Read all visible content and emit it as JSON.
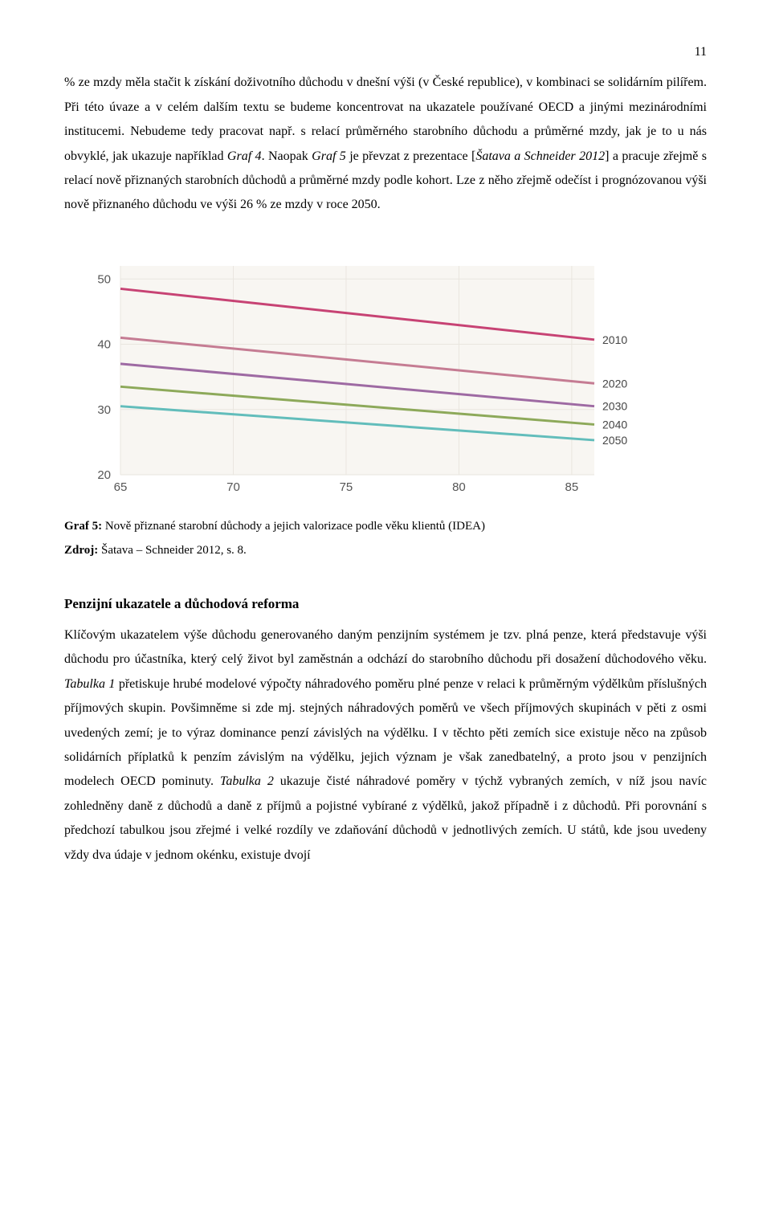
{
  "page_number": "11",
  "paragraph1": {
    "t1": "% ze mzdy měla stačit k získání doživotního důchodu v dnešní výši (v České republice), v kombinaci se solidárním pilířem. Při této úvaze a v celém dalším textu se budeme koncentrovat na ukazatele používané OECD a jinými mezinárodními institucemi. Nebudeme tedy pracovat např. s relací průměrného starobního důchodu a průměrné mzdy, jak je to u nás obvyklé, jak ukazuje například ",
    "i1": "Graf 4",
    "t2": ". Naopak ",
    "i2": "Graf 5",
    "t3": " je převzat z prezentace [",
    "i3": "Šatava a Schneider 2012",
    "t4": "] a pracuje zřejmě s relací nově přiznaných starobních důchodů a průměrné mzdy podle kohort. Lze z něho zřejmě odečíst i prognózovanou výši nově přiznaného důchodu ve výši 26 % ze mzdy v roce 2050."
  },
  "chart": {
    "type": "line",
    "x_ticks": [
      65,
      70,
      75,
      80,
      85
    ],
    "y_ticks": [
      20,
      30,
      40,
      50
    ],
    "xlim": [
      65,
      86
    ],
    "ylim": [
      20,
      52
    ],
    "plot_background": "#f8f6f2",
    "grid_color": "#e9e6df",
    "axis_text_color": "#555555",
    "label_text_color": "#444444",
    "line_width": 3,
    "axis_fontsize": 15,
    "label_fontsize": 14,
    "series": [
      {
        "label": "2010",
        "color": "#c74374",
        "y_start": 48.5,
        "y_end": 40.7
      },
      {
        "label": "2020",
        "color": "#c57c93",
        "y_start": 41.0,
        "y_end": 34.0
      },
      {
        "label": "2030",
        "color": "#9e6aa3",
        "y_start": 37.0,
        "y_end": 30.5
      },
      {
        "label": "2040",
        "color": "#8da95a",
        "y_start": 33.5,
        "y_end": 27.7
      },
      {
        "label": "2050",
        "color": "#62bdbb",
        "y_start": 30.5,
        "y_end": 25.3
      }
    ]
  },
  "caption": {
    "b1": "Graf 5:",
    "t1": " Nově přiznané starobní důchody a jejich valorizace podle věku klientů (IDEA)",
    "b2": "Zdroj:",
    "t2": " Šatava – Schneider 2012, s. 8."
  },
  "section_heading": "Penzijní ukazatele a důchodová reforma",
  "paragraph2": {
    "t1": "Klíčovým ukazatelem výše důchodu generovaného daným penzijním systémem je tzv. plná penze, která představuje výši důchodu pro účastníka, který celý život byl zaměstnán a odchází do starobního důchodu při dosažení důchodového věku. ",
    "i1": "Tabulka 1",
    "t2": " přetiskuje hrubé modelové výpočty náhradového poměru plné penze v relaci k průměrným výdělkům příslušných příjmových skupin. Povšimněme si zde mj. stejných náhradových poměrů ve všech příjmových skupinách v pěti z osmi uvedených zemí; je to výraz dominance penzí závislých na výdělku. I v těchto pěti zemích sice existuje něco na způsob solidárních příplatků k penzím závislým na výdělku, jejich význam je však zanedbatelný, a proto jsou v penzijních modelech OECD pominuty. ",
    "i2": "Tabulka 2",
    "t3": " ukazuje čisté náhradové poměry v týchž vybraných zemích, v níž jsou navíc zohledněny daně z důchodů a daně z příjmů a pojistné vybírané z výdělků, jakož případně i z důchodů. Při porovnání s předchozí tabulkou jsou zřejmé i velké rozdíly ve zdaňování důchodů v jednotlivých zemích. U států, kde jsou uvedeny vždy dva údaje v jednom okénku, existuje dvojí"
  }
}
